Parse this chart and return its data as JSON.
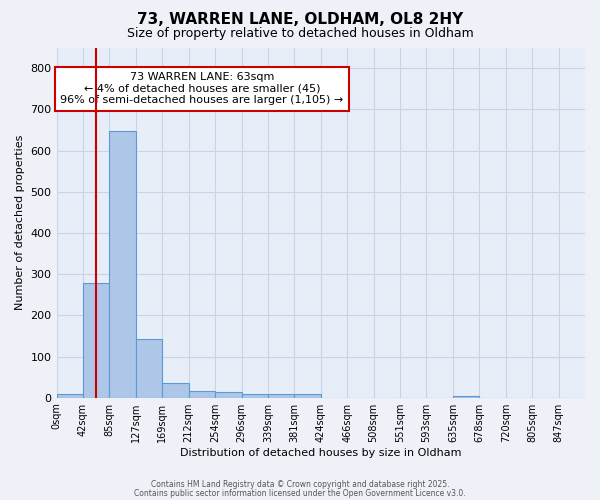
{
  "title1": "73, WARREN LANE, OLDHAM, OL8 2HY",
  "title2": "Size of property relative to detached houses in Oldham",
  "xlabel": "Distribution of detached houses by size in Oldham",
  "ylabel": "Number of detached properties",
  "bar_values": [
    8,
    278,
    648,
    142,
    35,
    16,
    13,
    10,
    8,
    8,
    0,
    0,
    0,
    0,
    0,
    5,
    0,
    0,
    0,
    0
  ],
  "bar_color": "#aec6e8",
  "bar_edge_color": "#5b9bd5",
  "x_tick_labels": [
    "0sqm",
    "42sqm",
    "85sqm",
    "127sqm",
    "169sqm",
    "212sqm",
    "254sqm",
    "296sqm",
    "339sqm",
    "381sqm",
    "424sqm",
    "466sqm",
    "508sqm",
    "551sqm",
    "593sqm",
    "635sqm",
    "678sqm",
    "720sqm",
    "805sqm",
    "847sqm"
  ],
  "ylim": [
    0,
    850
  ],
  "yticks": [
    0,
    100,
    200,
    300,
    400,
    500,
    600,
    700,
    800
  ],
  "grid_color": "#c8d4e8",
  "bg_color": "#e8eef8",
  "fig_bg_color": "#eef2f8",
  "red_line_x": 1.5,
  "annotation_text": "73 WARREN LANE: 63sqm\n← 4% of detached houses are smaller (45)\n96% of semi-detached houses are larger (1,105) →",
  "annotation_box_facecolor": "#ffffff",
  "red_line_color": "#cc0000",
  "footer1": "Contains HM Land Registry data © Crown copyright and database right 2025.",
  "footer2": "Contains public sector information licensed under the Open Government Licence v3.0."
}
